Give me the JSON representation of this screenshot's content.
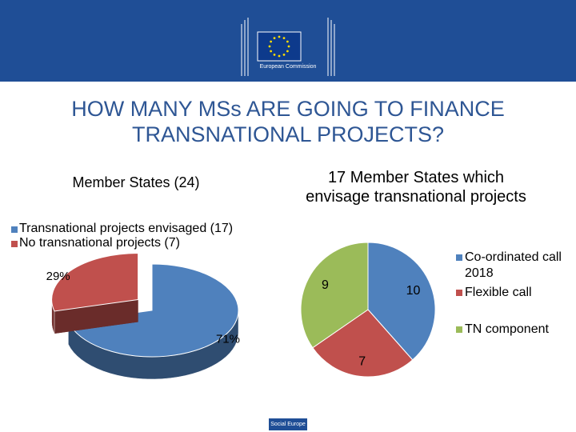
{
  "header": {
    "logo_text": "European Commission"
  },
  "slide_title": "HOW MANY MSs ARE GOING TO FINANCE TRANSNATIONAL PROJECTS?",
  "footer": "Social Europe",
  "chart_data": [
    {
      "type": "pie3d",
      "title": "Member States (24)",
      "categories": [
        "Transnational projects envisaged (17)",
        "No transnational projects (7)"
      ],
      "values": [
        71,
        29
      ],
      "value_labels": [
        "71%",
        "29%"
      ],
      "colors": [
        "#4f81bd",
        "#c0504d"
      ]
    },
    {
      "type": "pie",
      "title": "17 Member States which envisage transnational projects",
      "categories": [
        "Co-ordinated call 2018",
        "Flexible call",
        "TN component"
      ],
      "values": [
        10,
        7,
        9
      ],
      "colors": [
        "#4f81bd",
        "#c0504d",
        "#9bbb59"
      ]
    }
  ]
}
